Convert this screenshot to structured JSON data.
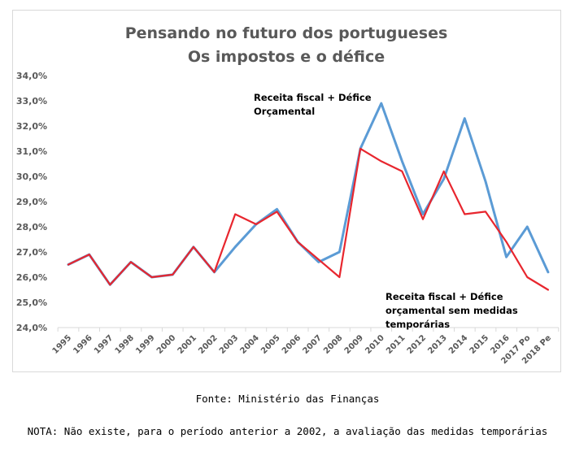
{
  "chart_data": {
    "type": "line",
    "title_lines": [
      "Pensando no futuro dos portugueses",
      "Os impostos e o défice"
    ],
    "xlabel": "",
    "ylabel": "",
    "categories": [
      "1995",
      "1996",
      "1997",
      "1998",
      "1999",
      "2000",
      "2001",
      "2002",
      "2003",
      "2004",
      "2005",
      "2006",
      "2007",
      "2008",
      "2009",
      "2010",
      "2011",
      "2012",
      "2013",
      "2014",
      "2015",
      "2016",
      "2017 Po",
      "2018 Pe"
    ],
    "yticks": [
      "24,0%",
      "25,0%",
      "26,0%",
      "27,0%",
      "28,0%",
      "29,0%",
      "30,0%",
      "31,0%",
      "32,0%",
      "33,0%",
      "34,0%"
    ],
    "ylim": [
      24.0,
      34.0
    ],
    "grid": false,
    "series": [
      {
        "name": "Receita fiscal + Défice Orçamental",
        "color": "#5b9bd5",
        "values": [
          26.5,
          26.9,
          25.7,
          26.6,
          26.0,
          26.1,
          27.2,
          26.2,
          27.2,
          28.1,
          28.7,
          27.4,
          26.6,
          27.0,
          31.1,
          32.9,
          30.6,
          28.5,
          29.9,
          32.3,
          29.8,
          26.8,
          28.0,
          26.2
        ]
      },
      {
        "name": "Receita fiscal + Défice orçamental sem medidas temporárias",
        "color": "#e8262e",
        "values": [
          26.5,
          26.9,
          25.7,
          26.6,
          26.0,
          26.1,
          27.2,
          26.2,
          28.5,
          28.1,
          28.6,
          27.4,
          26.7,
          26.0,
          31.1,
          30.6,
          30.2,
          28.3,
          30.2,
          28.5,
          28.6,
          27.4,
          26.0,
          25.5
        ]
      }
    ],
    "annotations": [
      {
        "lines": [
          "Receita fiscal + Défice",
          "Orçamental"
        ]
      },
      {
        "lines": [
          "Receita fiscal + Défice",
          "orçamental  sem medidas",
          "temporárias"
        ]
      }
    ]
  },
  "footer": {
    "source": "Fonte: Ministério das Finanças",
    "note": "NOTA: Não existe, para o período anterior a 2002, a avaliação das medidas temporárias"
  }
}
